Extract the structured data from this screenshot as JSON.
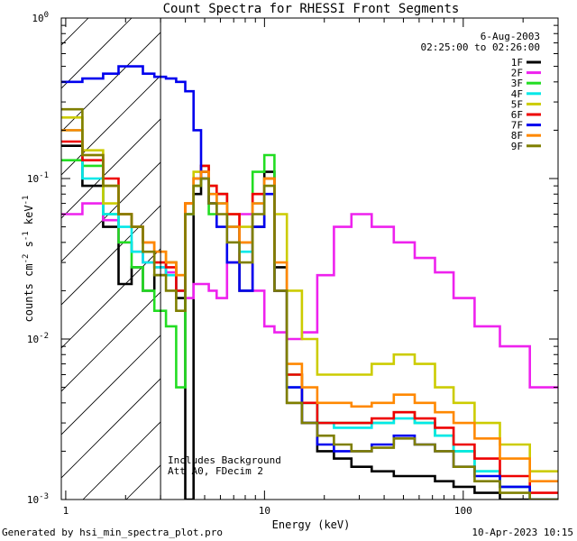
{
  "chart_data": {
    "type": "line",
    "title": "Count Spectra for RHESSI Front Segments",
    "xlabel": "Energy (keV)",
    "ylabel_parts": {
      "a": "counts cm",
      "e1": "-2",
      "b": " s",
      "e2": "-1",
      "c": " keV",
      "e3": "-1"
    },
    "xscale": "log",
    "yscale": "log",
    "xlim": [
      0.95,
      300
    ],
    "ylim": [
      0.001,
      1
    ],
    "x_ticks": [
      {
        "value": 1,
        "label": "1"
      },
      {
        "value": 10,
        "label": "10"
      },
      {
        "value": 100,
        "label": "100"
      }
    ],
    "y_ticks": [
      {
        "value": 0.001,
        "base": "10",
        "exp": "-3"
      },
      {
        "value": 0.01,
        "base": "10",
        "exp": "-2"
      },
      {
        "value": 0.1,
        "base": "10",
        "exp": "-1"
      },
      {
        "value": 1,
        "base": "10",
        "exp": "0"
      }
    ],
    "date": "6-Aug-2003",
    "time_range": "02:25:00 to 02:26:00",
    "attenuator_cutoff_kev": 3,
    "annotations": [
      "Includes Background",
      "Att A0, FDecim 2"
    ],
    "footer_left": "Generated by hsi_min_spectra_plot.pro",
    "footer_right": "10-Apr-2023 10:15",
    "series": [
      {
        "name": "1F",
        "color": "#000000",
        "values": [
          0.16,
          0.09,
          0.05,
          0.022,
          0.028,
          0.02,
          0.025,
          0.03,
          0.018,
          0.001,
          0.08,
          0.11,
          0.07,
          0.08,
          0.05,
          0.02,
          0.05,
          0.11,
          0.028,
          0.004,
          0.003,
          0.002,
          0.0018,
          0.0016,
          0.0015,
          0.0014,
          0.0014,
          0.0013,
          0.0012,
          0.0011,
          0.001,
          0.001
        ]
      },
      {
        "name": "2F",
        "color": "#ee22ee",
        "values": [
          0.06,
          0.07,
          0.055,
          0.04,
          0.035,
          0.03,
          0.028,
          0.026,
          0.02,
          0.018,
          0.022,
          0.022,
          0.02,
          0.018,
          0.03,
          0.06,
          0.02,
          0.012,
          0.011,
          0.01,
          0.011,
          0.025,
          0.05,
          0.06,
          0.05,
          0.04,
          0.032,
          0.026,
          0.018,
          0.012,
          0.009,
          0.005
        ]
      },
      {
        "name": "3F",
        "color": "#22dd22",
        "values": [
          0.13,
          0.12,
          0.06,
          0.04,
          0.028,
          0.02,
          0.015,
          0.012,
          0.005,
          0.06,
          0.09,
          0.1,
          0.06,
          0.07,
          0.05,
          0.04,
          0.11,
          0.14,
          0.02,
          0.006,
          0.004,
          0.003,
          0.003,
          0.003,
          0.003,
          0.0035,
          0.003,
          0.0025,
          0.002,
          0.0015,
          0.0012,
          0.001
        ]
      },
      {
        "name": "4F",
        "color": "#00e8e8",
        "values": [
          0.2,
          0.1,
          0.06,
          0.05,
          0.035,
          0.03,
          0.028,
          0.025,
          0.02,
          0.06,
          0.1,
          0.12,
          0.08,
          0.07,
          0.05,
          0.035,
          0.07,
          0.1,
          0.02,
          0.005,
          0.004,
          0.003,
          0.0028,
          0.0028,
          0.003,
          0.0032,
          0.003,
          0.0025,
          0.002,
          0.0015,
          0.0012,
          0.001
        ]
      },
      {
        "name": "5F",
        "color": "#cccc00",
        "values": [
          0.24,
          0.15,
          0.07,
          0.06,
          0.05,
          0.04,
          0.035,
          0.03,
          0.025,
          0.07,
          0.11,
          0.12,
          0.09,
          0.08,
          0.06,
          0.05,
          0.08,
          0.1,
          0.06,
          0.02,
          0.01,
          0.006,
          0.006,
          0.006,
          0.007,
          0.008,
          0.007,
          0.005,
          0.004,
          0.003,
          0.0022,
          0.0015
        ]
      },
      {
        "name": "6F",
        "color": "#ee0000",
        "values": [
          0.17,
          0.13,
          0.1,
          0.06,
          0.05,
          0.04,
          0.03,
          0.028,
          0.02,
          0.07,
          0.1,
          0.12,
          0.09,
          0.08,
          0.06,
          0.04,
          0.08,
          0.1,
          0.02,
          0.006,
          0.004,
          0.003,
          0.003,
          0.003,
          0.0032,
          0.0035,
          0.0032,
          0.0028,
          0.0022,
          0.0018,
          0.0014,
          0.0011
        ]
      },
      {
        "name": "7F",
        "color": "#0000ee",
        "values": [
          0.4,
          0.42,
          0.45,
          0.5,
          0.5,
          0.45,
          0.43,
          0.42,
          0.4,
          0.35,
          0.2,
          0.1,
          0.07,
          0.05,
          0.03,
          0.02,
          0.05,
          0.08,
          0.02,
          0.005,
          0.003,
          0.0022,
          0.002,
          0.002,
          0.0022,
          0.0025,
          0.0022,
          0.002,
          0.0016,
          0.0014,
          0.0012,
          0.001
        ]
      },
      {
        "name": "8F",
        "color": "#ff8800",
        "values": [
          0.2,
          0.14,
          0.09,
          0.06,
          0.05,
          0.04,
          0.035,
          0.03,
          0.025,
          0.07,
          0.1,
          0.11,
          0.08,
          0.07,
          0.05,
          0.04,
          0.07,
          0.1,
          0.03,
          0.007,
          0.005,
          0.004,
          0.004,
          0.0038,
          0.004,
          0.0045,
          0.004,
          0.0035,
          0.003,
          0.0024,
          0.0018,
          0.0013
        ]
      },
      {
        "name": "9F",
        "color": "#7f7f00",
        "values": [
          0.27,
          0.14,
          0.09,
          0.06,
          0.05,
          0.035,
          0.025,
          0.02,
          0.015,
          0.06,
          0.09,
          0.1,
          0.07,
          0.06,
          0.04,
          0.03,
          0.06,
          0.09,
          0.02,
          0.004,
          0.003,
          0.0025,
          0.0022,
          0.002,
          0.0021,
          0.0024,
          0.0022,
          0.002,
          0.0016,
          0.0013,
          0.0011,
          0.001
        ]
      }
    ],
    "energy_bins": [
      1.05,
      1.4,
      1.7,
      2.0,
      2.3,
      2.6,
      3.0,
      3.4,
      3.8,
      4.2,
      4.6,
      5.0,
      5.5,
      6.0,
      7.0,
      8.0,
      9.5,
      10.5,
      12.0,
      14.0,
      17.0,
      20.0,
      25.0,
      30.0,
      40.0,
      50.0,
      65.0,
      80.0,
      100.0,
      130.0,
      180.0,
      260.0
    ]
  }
}
